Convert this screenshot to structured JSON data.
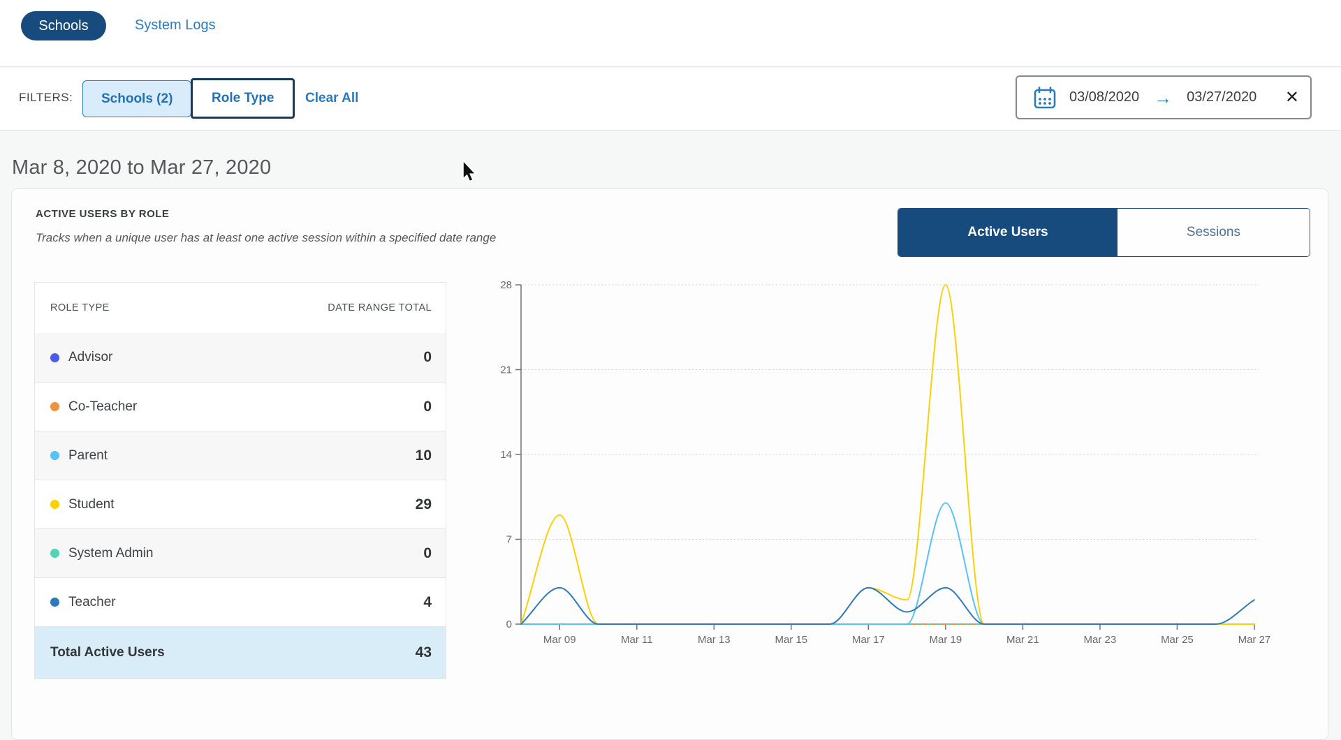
{
  "theme": {
    "navy": "#174b7d",
    "link_blue": "#2a7abe",
    "filter_button_bg": "#d8ecfb",
    "total_row_bg": "#d9edf9",
    "row_alt_bg": "#f7f7f8",
    "content_bg": "#f6f7f7"
  },
  "nav": {
    "schools_tab": "Schools",
    "system_logs_tab": "System Logs"
  },
  "filters": {
    "label": "FILTERS:",
    "schools_button": "Schools (2)",
    "role_type_button": "Role Type",
    "clear_all": "Clear All",
    "date_range": {
      "start": "03/08/2020",
      "end": "03/27/2020"
    },
    "calendar_icon": "calendar-icon",
    "arrow_icon": "right-arrow-icon",
    "close_icon": "close-x-icon"
  },
  "page": {
    "heading": "Mar 8, 2020 to Mar 27, 2020"
  },
  "card": {
    "title": "ACTIVE USERS BY ROLE",
    "subtitle": "Tracks when a unique user has at least one active session within a specified date range",
    "toggle": {
      "active": "Active Users",
      "inactive": "Sessions"
    }
  },
  "table": {
    "columns": [
      "ROLE TYPE",
      "DATE RANGE TOTAL"
    ],
    "rows": [
      {
        "label": "Advisor",
        "value": "0",
        "color": "#4a5be6"
      },
      {
        "label": "Co-Teacher",
        "value": "0",
        "color": "#f0913e"
      },
      {
        "label": "Parent",
        "value": "10",
        "color": "#57c2f5"
      },
      {
        "label": "Student",
        "value": "29",
        "color": "#fcd006"
      },
      {
        "label": "System Admin",
        "value": "0",
        "color": "#50d4b3"
      },
      {
        "label": "Teacher",
        "value": "4",
        "color": "#2d79bb"
      }
    ],
    "total": {
      "label": "Total Active Users",
      "value": "43"
    }
  },
  "chart_data": {
    "type": "line",
    "title": "Active Users by Role (daily)",
    "xlabel": "",
    "ylabel": "",
    "ylim": [
      0,
      28
    ],
    "yticks": [
      0,
      7,
      14,
      21,
      28
    ],
    "grid": "dotted horizontal",
    "legend_position": "table-left",
    "categories": [
      "Mar 08",
      "Mar 09",
      "Mar 10",
      "Mar 11",
      "Mar 12",
      "Mar 13",
      "Mar 14",
      "Mar 15",
      "Mar 16",
      "Mar 17",
      "Mar 18",
      "Mar 19",
      "Mar 20",
      "Mar 21",
      "Mar 22",
      "Mar 23",
      "Mar 24",
      "Mar 25",
      "Mar 26",
      "Mar 27"
    ],
    "xtick_labels": [
      "Mar 09",
      "Mar 11",
      "Mar 13",
      "Mar 15",
      "Mar 17",
      "Mar 19",
      "Mar 21",
      "Mar 23",
      "Mar 25",
      "Mar 27"
    ],
    "series": [
      {
        "name": "Advisor",
        "color": "#4a5be6",
        "dash": false,
        "values": [
          0,
          0,
          0,
          0,
          0,
          0,
          0,
          0,
          0,
          0,
          0,
          0,
          0,
          0,
          0,
          0,
          0,
          0,
          0,
          0
        ]
      },
      {
        "name": "System Admin",
        "color": "#50d4b3",
        "dash": false,
        "values": [
          0,
          0,
          0,
          0,
          0,
          0,
          0,
          0,
          0,
          0,
          0,
          0,
          0,
          0,
          0,
          0,
          0,
          0,
          0,
          0
        ]
      },
      {
        "name": "Co-Teacher",
        "color": "#f0913e",
        "dash": true,
        "values": [
          0,
          0,
          0,
          0,
          0,
          0,
          0,
          0,
          0,
          0,
          0,
          0,
          0,
          0,
          0,
          0,
          0,
          0,
          0,
          0
        ]
      },
      {
        "name": "Parent",
        "color": "#57c2f5",
        "dash": false,
        "values": [
          0,
          0,
          0,
          0,
          0,
          0,
          0,
          0,
          0,
          0,
          0,
          10,
          0,
          0,
          0,
          0,
          0,
          0,
          0,
          0
        ]
      },
      {
        "name": "Student",
        "color": "#fcd006",
        "dash": false,
        "values": [
          0,
          9,
          0,
          0,
          0,
          0,
          0,
          0,
          0,
          3,
          2,
          28,
          0,
          0,
          0,
          0,
          0,
          0,
          0,
          0
        ]
      },
      {
        "name": "Teacher",
        "color": "#2d79bb",
        "dash": false,
        "values": [
          0,
          3,
          0,
          0,
          0,
          0,
          0,
          0,
          0,
          3,
          1,
          3,
          0,
          0,
          0,
          0,
          0,
          0,
          0,
          2
        ]
      }
    ]
  }
}
